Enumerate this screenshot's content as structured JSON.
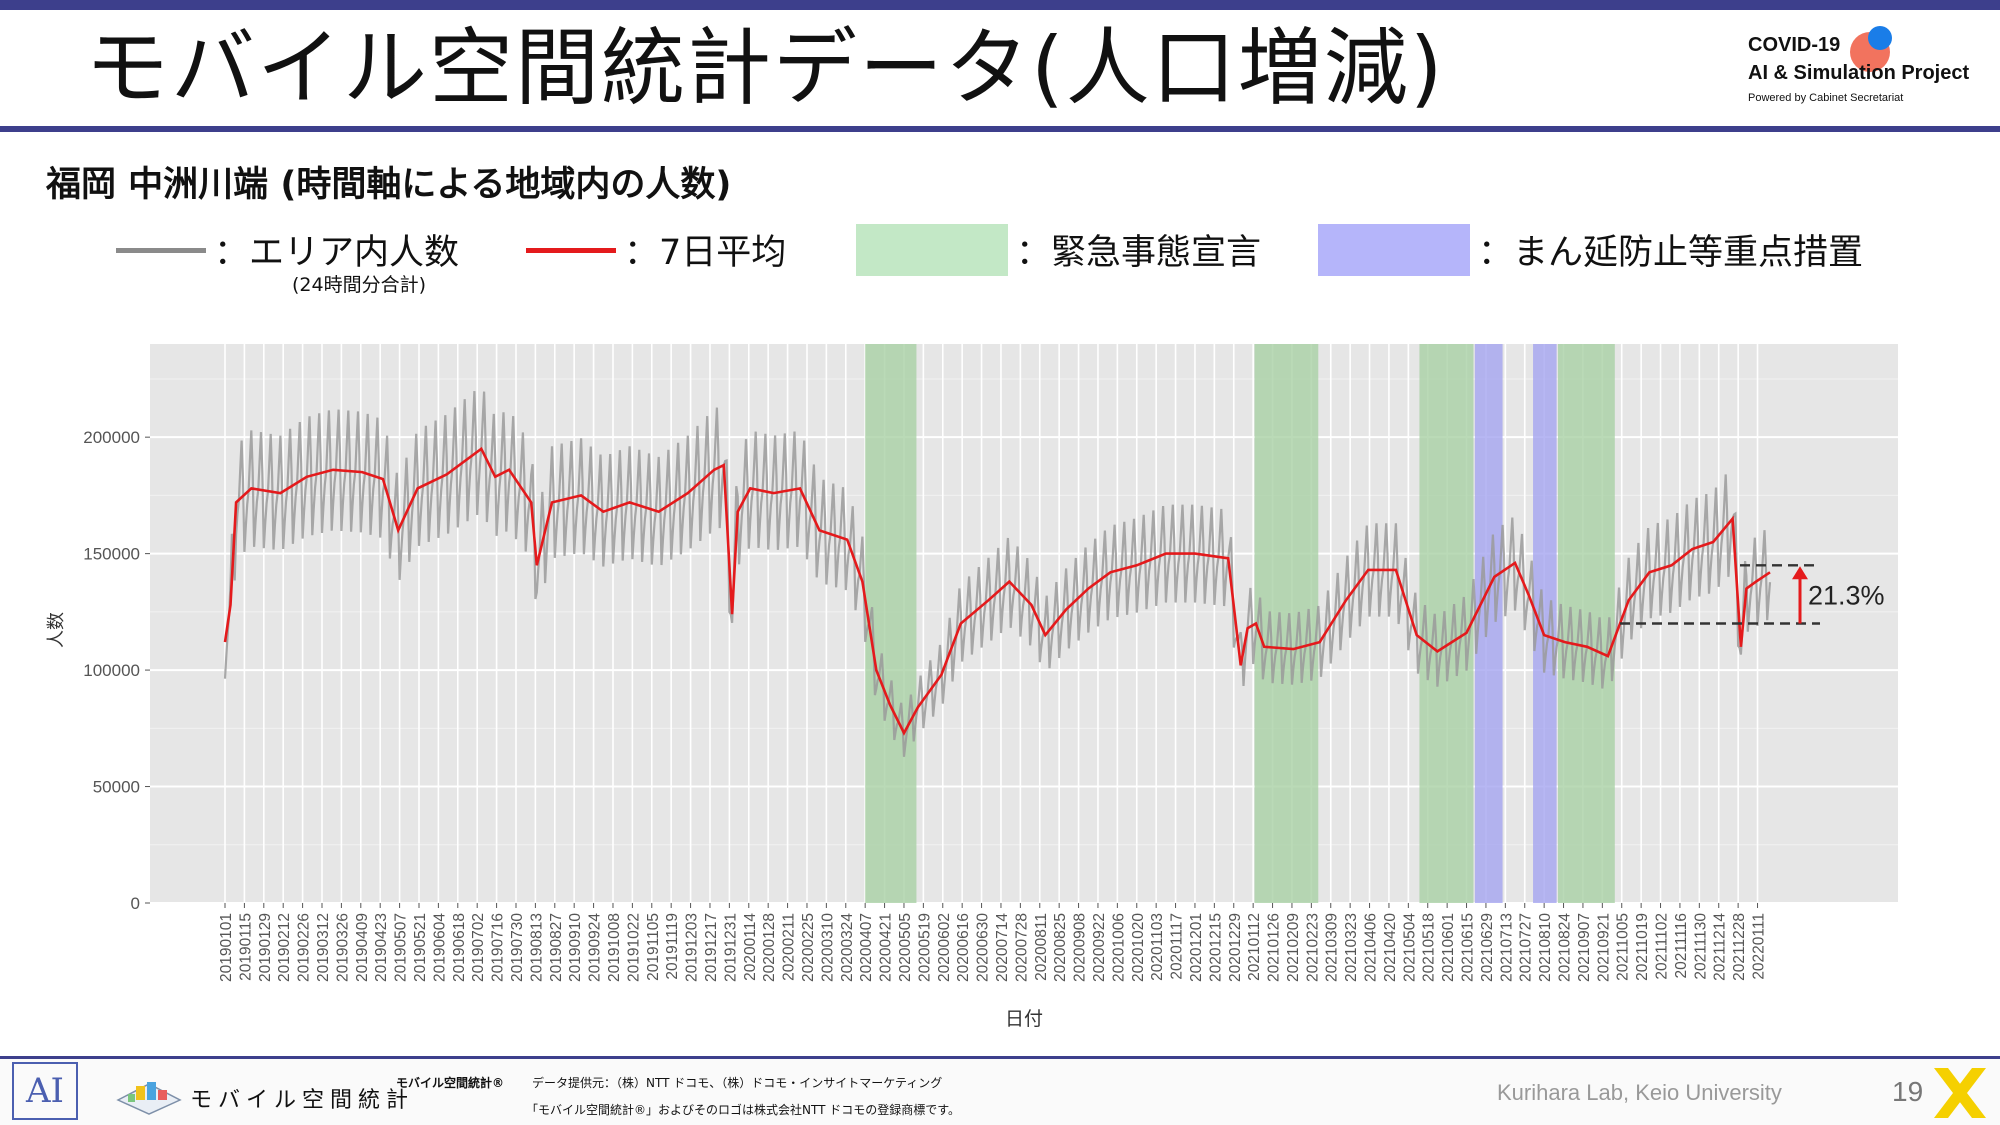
{
  "slide": {
    "title": "モバイル空間統計データ(人口増減)",
    "subtitle": "福岡 中洲川端 (時間軸による地域内の人数)",
    "page_number": "19"
  },
  "logo": {
    "line1": "COVID-19",
    "line2": "AI & Simulation Project",
    "line3": "Powered by Cabinet Secretariat"
  },
  "legend": {
    "raw_label": "：エリア内人数",
    "raw_note": "(24時間分合計)",
    "avg_label": "：7日平均",
    "emergency_label": "：緊急事態宣言",
    "semi_label": "：まん延防止等重点措置",
    "colors": {
      "raw": "#8a8a8a",
      "avg": "#e41a1c",
      "emergency": "#c3e8c6",
      "semi": "#b5b5fa"
    }
  },
  "footer": {
    "brand": "モバイル空間統計",
    "brand_small": "モバイル空間統計®",
    "provider": "データ提供元：（株）NTT ドコモ、（株）ドコモ・インサイトマーケティング",
    "trademark": "「モバイル空間統計®」およびそのロゴは株式会社NTT ドコモの登録商標です。",
    "lab": "Kurihara Lab, Keio University"
  },
  "chart_data": {
    "type": "line",
    "xlabel": "日付",
    "ylabel": "人数",
    "ylim": [
      0,
      240000
    ],
    "yticks": [
      0,
      50000,
      100000,
      150000,
      200000
    ],
    "ytick_labels": [
      "0",
      "50000",
      "100000",
      "150000",
      "200000"
    ],
    "grid": true,
    "x_tick_labels": [
      "20190101",
      "20190115",
      "20190129",
      "20190212",
      "20190226",
      "20190312",
      "20190326",
      "20190409",
      "20190423",
      "20190507",
      "20190521",
      "20190604",
      "20190618",
      "20190702",
      "20190716",
      "20190730",
      "20190813",
      "20190827",
      "20190910",
      "20190924",
      "20191008",
      "20191022",
      "20191105",
      "20191119",
      "20191203",
      "20191217",
      "20191231",
      "20200114",
      "20200128",
      "20200211",
      "20200225",
      "20200310",
      "20200324",
      "20200407",
      "20200421",
      "20200505",
      "20200519",
      "20200602",
      "20200616",
      "20200630",
      "20200714",
      "20200728",
      "20200811",
      "20200825",
      "20200908",
      "20200922",
      "20201006",
      "20201020",
      "20201103",
      "20201117",
      "20201201",
      "20201215",
      "20201229",
      "20210112",
      "20210126",
      "20210209",
      "20210223",
      "20210309",
      "20210323",
      "20210406",
      "20210420",
      "20210504",
      "20210518",
      "20210601",
      "20210615",
      "20210629",
      "20210713",
      "20210727",
      "20210810",
      "20210824",
      "20210907",
      "20210921",
      "20211005",
      "20211019",
      "20211102",
      "20211116",
      "20211130",
      "20211214",
      "20211228",
      "20220111"
    ],
    "series": [
      {
        "name": "7日平均",
        "color": "#e41a1c",
        "x": [
          "2019-01-01",
          "2019-01-05",
          "2019-01-09",
          "2019-01-20",
          "2019-02-10",
          "2019-03-01",
          "2019-03-20",
          "2019-04-10",
          "2019-04-25",
          "2019-05-06",
          "2019-05-20",
          "2019-06-10",
          "2019-07-05",
          "2019-07-15",
          "2019-07-25",
          "2019-08-10",
          "2019-08-14",
          "2019-08-25",
          "2019-09-15",
          "2019-10-01",
          "2019-10-20",
          "2019-11-10",
          "2019-12-01",
          "2019-12-20",
          "2019-12-27",
          "2020-01-02",
          "2020-01-06",
          "2020-01-15",
          "2020-02-01",
          "2020-02-20",
          "2020-03-05",
          "2020-03-25",
          "2020-04-05",
          "2020-04-15",
          "2020-04-25",
          "2020-05-05",
          "2020-05-15",
          "2020-06-01",
          "2020-06-15",
          "2020-07-05",
          "2020-07-20",
          "2020-08-05",
          "2020-08-15",
          "2020-08-30",
          "2020-09-15",
          "2020-10-01",
          "2020-10-20",
          "2020-11-10",
          "2020-12-01",
          "2020-12-25",
          "2021-01-03",
          "2021-01-08",
          "2021-01-14",
          "2021-01-20",
          "2021-02-10",
          "2021-03-01",
          "2021-03-20",
          "2021-04-05",
          "2021-04-25",
          "2021-05-10",
          "2021-05-25",
          "2021-06-15",
          "2021-07-05",
          "2021-07-20",
          "2021-07-30",
          "2021-08-10",
          "2021-08-25",
          "2021-09-10",
          "2021-09-25",
          "2021-10-10",
          "2021-10-25",
          "2021-11-10",
          "2021-11-25",
          "2021-12-10",
          "2021-12-24",
          "2021-12-30",
          "2022-01-03",
          "2022-01-10",
          "2022-01-20"
        ],
        "y": [
          112000,
          128000,
          172000,
          178000,
          176000,
          183000,
          186000,
          185000,
          182000,
          160000,
          178000,
          184000,
          195000,
          183000,
          186000,
          172000,
          145000,
          172000,
          175000,
          168000,
          172000,
          168000,
          176000,
          186000,
          188000,
          124000,
          168000,
          178000,
          176000,
          178000,
          160000,
          156000,
          138000,
          100000,
          85000,
          73000,
          84000,
          98000,
          120000,
          130000,
          138000,
          128000,
          115000,
          126000,
          135000,
          142000,
          145000,
          150000,
          150000,
          148000,
          102000,
          118000,
          120000,
          110000,
          109000,
          112000,
          130000,
          143000,
          143000,
          115000,
          108000,
          116000,
          140000,
          146000,
          132000,
          115000,
          112000,
          110000,
          106000,
          130000,
          142000,
          145000,
          152000,
          155000,
          165000,
          110000,
          135000,
          138000,
          142000
        ]
      }
    ],
    "regions": [
      {
        "type": "緊急事態宣言",
        "start": "2020-04-07",
        "end": "2020-05-14"
      },
      {
        "type": "緊急事態宣言",
        "start": "2021-01-13",
        "end": "2021-02-28"
      },
      {
        "type": "緊急事態宣言",
        "start": "2021-05-12",
        "end": "2021-06-20"
      },
      {
        "type": "まん延防止等重点措置",
        "start": "2021-06-21",
        "end": "2021-07-11"
      },
      {
        "type": "まん延防止等重点措置",
        "start": "2021-08-02",
        "end": "2021-08-19"
      },
      {
        "type": "緊急事態宣言",
        "start": "2021-08-20",
        "end": "2021-09-30"
      }
    ],
    "annotations": [
      {
        "text": "21.3%",
        "from": 120000,
        "to": 145000
      }
    ]
  }
}
